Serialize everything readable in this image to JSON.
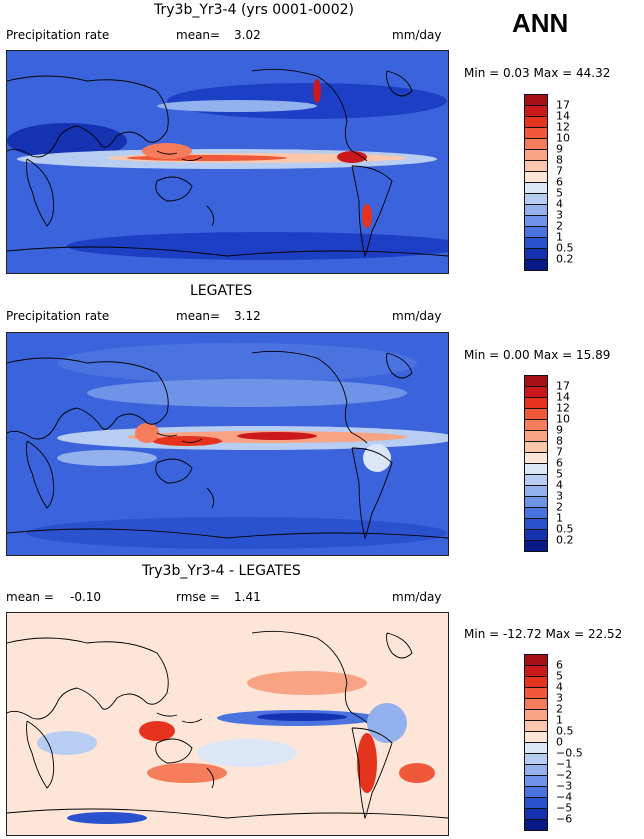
{
  "season": "ANN",
  "panels": [
    {
      "title": "Try3b_Yr3-4 (yrs 0001-0002)",
      "left_label": "Precipitation rate",
      "mid_label": "mean=",
      "mid_value": "3.02",
      "units": "mm/day",
      "minmax": "Min =   0.03 Max =  44.32",
      "levels": [
        "17",
        "14",
        "12",
        "10",
        "9",
        "8",
        "7",
        "6",
        "5",
        "4",
        "3",
        "2",
        "1",
        "0.5",
        "0.2"
      ],
      "colors": [
        "#a50f15",
        "#cb181d",
        "#e6331e",
        "#f0583a",
        "#f57d5c",
        "#f8a384",
        "#fbc7ad",
        "#fde6d8",
        "#dbe6f7",
        "#b8cdf2",
        "#93b1ed",
        "#6f93e7",
        "#4a73df",
        "#2a52cf",
        "#1532b3",
        "#081a88"
      ]
    },
    {
      "title": "LEGATES",
      "left_label": "Precipitation rate",
      "mid_label": "mean=",
      "mid_value": "3.12",
      "units": "mm/day",
      "minmax": "Min =   0.00 Max =  15.89",
      "levels": [
        "17",
        "14",
        "12",
        "10",
        "9",
        "8",
        "7",
        "6",
        "5",
        "4",
        "3",
        "2",
        "1",
        "0.5",
        "0.2"
      ],
      "colors": [
        "#a50f15",
        "#cb181d",
        "#e6331e",
        "#f0583a",
        "#f57d5c",
        "#f8a384",
        "#fbc7ad",
        "#fde6d8",
        "#dbe6f7",
        "#b8cdf2",
        "#93b1ed",
        "#6f93e7",
        "#4a73df",
        "#2a52cf",
        "#1532b3",
        "#081a88"
      ]
    },
    {
      "title": "Try3b_Yr3-4 - LEGATES",
      "left_label": "mean =",
      "left_value": "-0.10",
      "mid_label": "rmse =",
      "mid_value": "1.41",
      "units": "mm/day",
      "minmax": "Min = -12.72 Max =  22.52",
      "levels": [
        "6",
        "5",
        "4",
        "3",
        "2",
        "1",
        "0.5",
        "0",
        "−0.5",
        "−1",
        "−2",
        "−3",
        "−4",
        "−5",
        "−6"
      ],
      "colors": [
        "#a50f15",
        "#cb181d",
        "#e6331e",
        "#f0583a",
        "#f57d5c",
        "#f8a384",
        "#fbc7ad",
        "#fde6d8",
        "#dbe6f7",
        "#b8cdf2",
        "#93b1ed",
        "#6f93e7",
        "#4a73df",
        "#2a52cf",
        "#1532b3",
        "#081a88"
      ]
    }
  ],
  "chart_data": [
    {
      "type": "heatmap",
      "title": "Try3b_Yr3-4 (yrs 0001-0002)",
      "variable": "Precipitation rate",
      "units": "mm/day",
      "mean": 3.02,
      "min": 0.03,
      "max": 44.32,
      "contour_levels": [
        0.2,
        0.5,
        1,
        2,
        3,
        4,
        5,
        6,
        7,
        8,
        9,
        10,
        12,
        14,
        17
      ]
    },
    {
      "type": "heatmap",
      "title": "LEGATES",
      "variable": "Precipitation rate",
      "units": "mm/day",
      "mean": 3.12,
      "min": 0.0,
      "max": 15.89,
      "contour_levels": [
        0.2,
        0.5,
        1,
        2,
        3,
        4,
        5,
        6,
        7,
        8,
        9,
        10,
        12,
        14,
        17
      ]
    },
    {
      "type": "heatmap",
      "title": "Try3b_Yr3-4 - LEGATES",
      "units": "mm/day",
      "mean": -0.1,
      "rmse": 1.41,
      "min": -12.72,
      "max": 22.52,
      "contour_levels": [
        -6,
        -5,
        -4,
        -3,
        -2,
        -1,
        -0.5,
        0,
        0.5,
        1,
        2,
        3,
        4,
        5,
        6
      ]
    }
  ]
}
